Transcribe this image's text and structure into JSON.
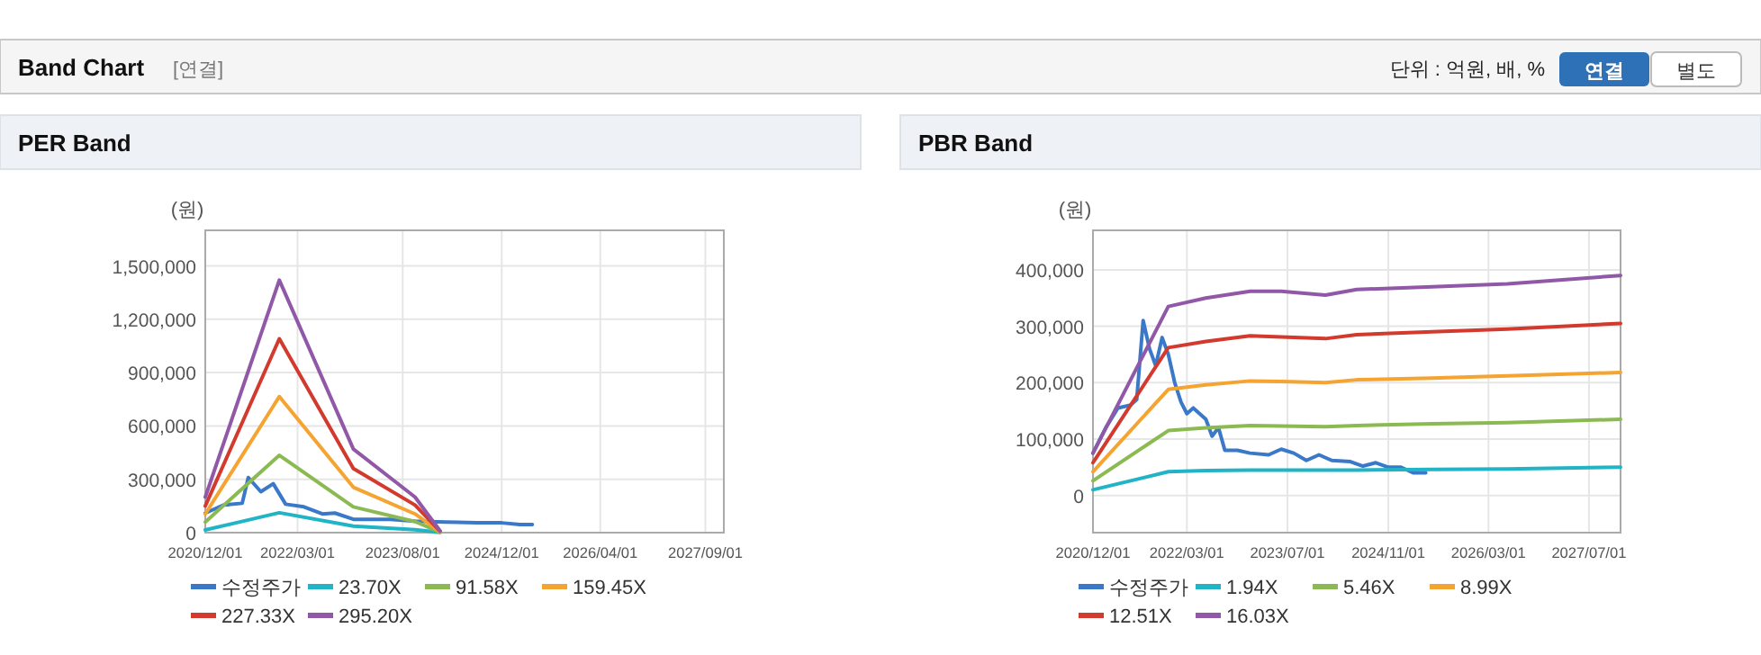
{
  "chart_data": [
    {
      "type": "other",
      "title": "Band Chart",
      "annotations": [
        "[연결]",
        "단위 : 억원, 배, %",
        "연결",
        "별도"
      ]
    },
    {
      "type": "line",
      "title": "PER Band",
      "ylabel": "(원)",
      "grid": true,
      "legend": "bottom",
      "xlim": [
        "2020-12-01",
        "2027-12-01"
      ],
      "ylim": [
        0,
        1700000
      ],
      "xticks": [
        {
          "value": "2020-12-01",
          "label": "2020/12/01"
        },
        {
          "value": "2022-03-01",
          "label": "2022/03/01"
        },
        {
          "value": "2023-08-01",
          "label": "2023/08/01"
        },
        {
          "value": "2024-12-01",
          "label": "2024/12/01"
        },
        {
          "value": "2026-04-01",
          "label": "2026/04/01"
        },
        {
          "value": "2027-09-01",
          "label": "2027/09/01"
        }
      ],
      "yticks": [
        {
          "value": 0,
          "label": "0"
        },
        {
          "value": 300000,
          "label": "300,000"
        },
        {
          "value": 600000,
          "label": "600,000"
        },
        {
          "value": 900000,
          "label": "900,000"
        },
        {
          "value": 1200000,
          "label": "1,200,000"
        },
        {
          "value": 1500000,
          "label": "1,500,000"
        }
      ],
      "series": [
        {
          "name": "수정주가",
          "color": "#3a78c9",
          "x": [
            "2020-12-01",
            "2021-03-01",
            "2021-06-01",
            "2021-07-01",
            "2021-09-01",
            "2021-11-01",
            "2022-01-01",
            "2022-04-01",
            "2022-07-01",
            "2022-09-01",
            "2022-12-01",
            "2023-06-01",
            "2023-10-01",
            "2024-03-01",
            "2024-08-01",
            "2024-12-01",
            "2025-03-01",
            "2025-05-01"
          ],
          "values": [
            110000,
            155000,
            165000,
            310000,
            230000,
            275000,
            160000,
            145000,
            105000,
            110000,
            75000,
            75000,
            65000,
            60000,
            55000,
            55000,
            45000,
            45000
          ]
        },
        {
          "name": "23.70X",
          "color": "#21b3c6",
          "x": [
            "2020-12-01",
            "2021-12-01",
            "2022-12-01",
            "2023-10-01",
            "2024-02-01"
          ],
          "values": [
            15000,
            112000,
            37000,
            16000,
            1000
          ]
        },
        {
          "name": "91.58X",
          "color": "#8cba52",
          "x": [
            "2020-12-01",
            "2021-12-01",
            "2022-12-01",
            "2023-10-01",
            "2024-02-01"
          ],
          "values": [
            60000,
            435000,
            145000,
            62000,
            3000
          ]
        },
        {
          "name": "159.45X",
          "color": "#f5a431",
          "x": [
            "2020-12-01",
            "2021-12-01",
            "2022-12-01",
            "2023-10-01",
            "2024-02-01"
          ],
          "values": [
            105000,
            765000,
            255000,
            105000,
            5000
          ]
        },
        {
          "name": "227.33X",
          "color": "#d23a2e",
          "x": [
            "2020-12-01",
            "2021-12-01",
            "2022-12-01",
            "2023-10-01",
            "2024-02-01"
          ],
          "values": [
            150000,
            1090000,
            360000,
            155000,
            8000
          ]
        },
        {
          "name": "295.20X",
          "color": "#9158a8",
          "x": [
            "2020-12-01",
            "2021-12-01",
            "2022-12-01",
            "2023-10-01",
            "2024-02-01"
          ],
          "values": [
            200000,
            1420000,
            470000,
            200000,
            10000
          ]
        }
      ]
    },
    {
      "type": "line",
      "title": "PBR Band",
      "ylabel": "(원)",
      "grid": true,
      "legend": "bottom",
      "xlim": [
        "2020-12-01",
        "2027-12-01"
      ],
      "ylim": [
        -66000,
        470000
      ],
      "xticks": [
        {
          "value": "2020-12-01",
          "label": "2020/12/01"
        },
        {
          "value": "2022-03-01",
          "label": "2022/03/01"
        },
        {
          "value": "2023-07-01",
          "label": "2023/07/01"
        },
        {
          "value": "2024-11-01",
          "label": "2024/11/01"
        },
        {
          "value": "2026-03-01",
          "label": "2026/03/01"
        },
        {
          "value": "2027-07-01",
          "label": "2027/07/01"
        }
      ],
      "yticks": [
        {
          "value": 0,
          "label": "0"
        },
        {
          "value": 100000,
          "label": "100,000"
        },
        {
          "value": 200000,
          "label": "200,000"
        },
        {
          "value": 300000,
          "label": "300,000"
        },
        {
          "value": 400000,
          "label": "400,000"
        }
      ],
      "series": [
        {
          "name": "수정주가",
          "color": "#3a78c9",
          "x": [
            "2020-12-01",
            "2021-02-01",
            "2021-04-01",
            "2021-06-01",
            "2021-07-01",
            "2021-08-01",
            "2021-09-01",
            "2021-10-01",
            "2021-11-01",
            "2021-12-01",
            "2022-01-01",
            "2022-02-01",
            "2022-03-01",
            "2022-04-01",
            "2022-06-01",
            "2022-07-01",
            "2022-08-01",
            "2022-09-01",
            "2022-11-01",
            "2023-01-01",
            "2023-04-01",
            "2023-06-01",
            "2023-08-01",
            "2023-10-01",
            "2023-12-01",
            "2024-02-01",
            "2024-05-01",
            "2024-07-01",
            "2024-09-01",
            "2024-11-01",
            "2025-01-01",
            "2025-03-01",
            "2025-05-01"
          ],
          "values": [
            75000,
            120000,
            155000,
            160000,
            170000,
            310000,
            260000,
            230000,
            280000,
            250000,
            200000,
            165000,
            145000,
            155000,
            135000,
            105000,
            120000,
            80000,
            80000,
            75000,
            72000,
            82000,
            75000,
            62000,
            72000,
            62000,
            60000,
            52000,
            58000,
            50000,
            50000,
            40000,
            40000
          ]
        },
        {
          "name": "1.94X",
          "color": "#21b3c6",
          "x": [
            "2020-12-01",
            "2021-12-01",
            "2022-06-01",
            "2023-01-01",
            "2023-06-01",
            "2024-01-01",
            "2024-06-01",
            "2025-06-01",
            "2026-06-01",
            "2027-12-01"
          ],
          "values": [
            10000,
            42000,
            44000,
            45000,
            45000,
            45000,
            45000,
            46000,
            47000,
            50000
          ]
        },
        {
          "name": "5.46X",
          "color": "#8cba52",
          "x": [
            "2020-12-01",
            "2021-12-01",
            "2022-06-01",
            "2023-01-01",
            "2023-06-01",
            "2024-01-01",
            "2024-06-01",
            "2025-06-01",
            "2026-06-01",
            "2027-12-01"
          ],
          "values": [
            26000,
            115000,
            120000,
            124000,
            123000,
            122000,
            124000,
            127000,
            129000,
            135000
          ]
        },
        {
          "name": "8.99X",
          "color": "#f5a431",
          "x": [
            "2020-12-01",
            "2021-12-01",
            "2022-06-01",
            "2023-01-01",
            "2023-06-01",
            "2024-01-01",
            "2024-06-01",
            "2025-06-01",
            "2026-06-01",
            "2027-12-01"
          ],
          "values": [
            42000,
            188000,
            196000,
            203000,
            202000,
            200000,
            205000,
            208000,
            212000,
            218000
          ]
        },
        {
          "name": "12.51X",
          "color": "#d23a2e",
          "x": [
            "2020-12-01",
            "2021-12-01",
            "2022-06-01",
            "2023-01-01",
            "2023-06-01",
            "2024-01-01",
            "2024-06-01",
            "2025-06-01",
            "2026-06-01",
            "2027-12-01"
          ],
          "values": [
            58000,
            262000,
            273000,
            283000,
            281000,
            278000,
            285000,
            290000,
            295000,
            305000
          ]
        },
        {
          "name": "16.03X",
          "color": "#9158a8",
          "x": [
            "2020-12-01",
            "2021-12-01",
            "2022-06-01",
            "2023-01-01",
            "2023-06-01",
            "2024-01-01",
            "2024-06-01",
            "2025-06-01",
            "2026-06-01",
            "2027-12-01"
          ],
          "values": [
            75000,
            335000,
            350000,
            362000,
            362000,
            355000,
            365000,
            370000,
            375000,
            390000
          ]
        }
      ]
    }
  ]
}
